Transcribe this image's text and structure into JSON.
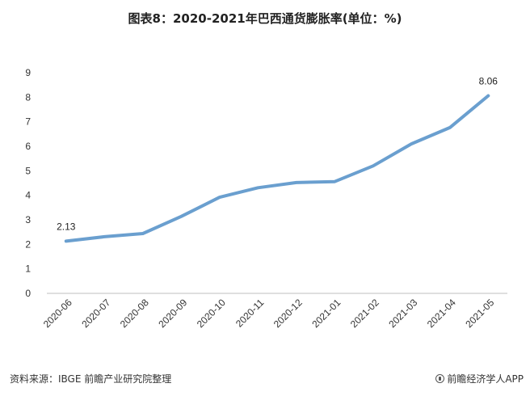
{
  "title": "图表8：2020-2021年巴西通货膨胀率(单位：%)",
  "footer": {
    "source": "资料来源：IBGE 前瞻产业研究院整理",
    "brand": "前瞻经济学人APP",
    "brand_icon": "circle-logo-icon"
  },
  "colors": {
    "line": "#6a9fcf",
    "axis": "#bfbfbf"
  },
  "chart_data": {
    "type": "line",
    "categories": [
      "2020-06",
      "2020-07",
      "2020-08",
      "2020-09",
      "2020-10",
      "2020-11",
      "2020-12",
      "2021-01",
      "2021-02",
      "2021-03",
      "2021-04",
      "2021-05"
    ],
    "series": [
      {
        "values": [
          2.13,
          2.31,
          2.44,
          3.14,
          3.92,
          4.31,
          4.52,
          4.56,
          5.2,
          6.1,
          6.76,
          8.06
        ]
      }
    ],
    "data_labels": [
      {
        "index": 0,
        "text": "2.13"
      },
      {
        "index": 11,
        "text": "8.06"
      }
    ],
    "yticks": [
      "0",
      "1",
      "2",
      "3",
      "4",
      "5",
      "6",
      "7",
      "8",
      "9"
    ],
    "ylim": [
      0,
      9
    ],
    "grid": false,
    "legend": "none"
  }
}
